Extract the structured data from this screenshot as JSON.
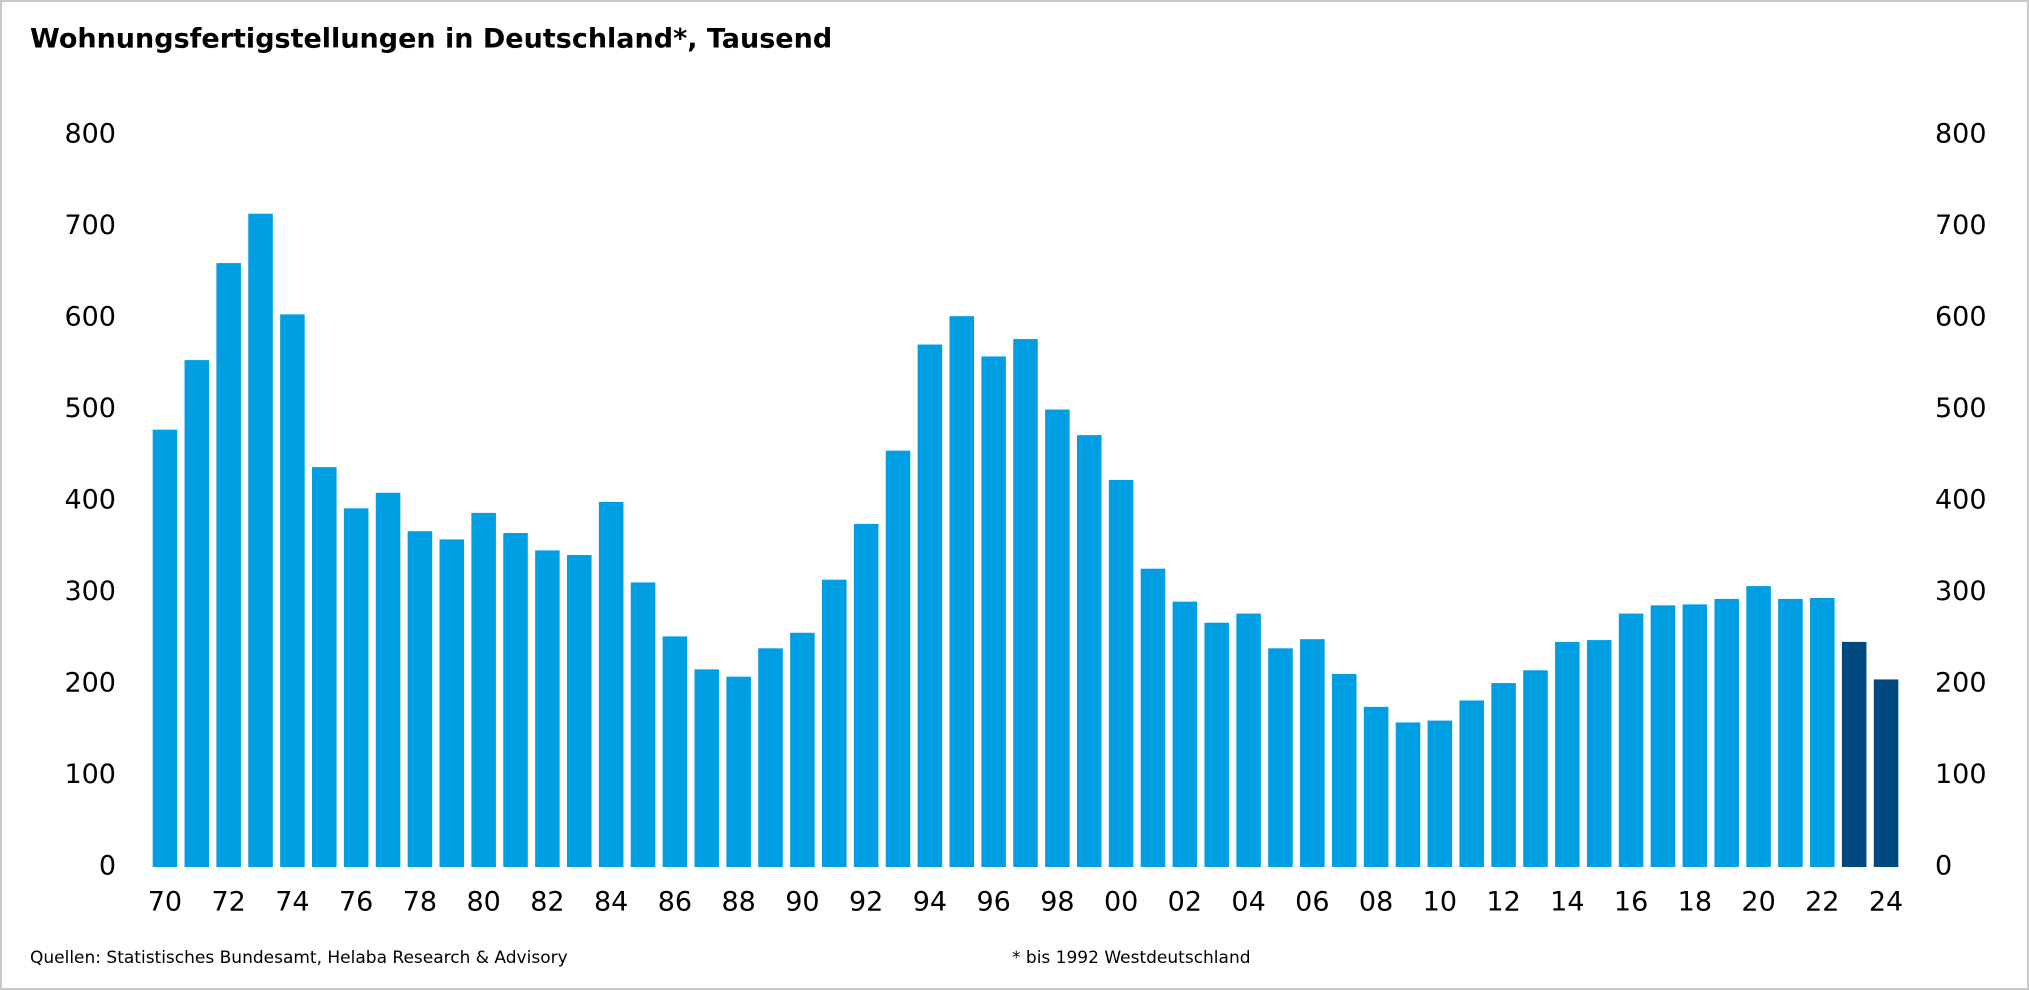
{
  "chart_data": {
    "type": "bar",
    "title": "Wohnungsfertigstellungen in Deutschland*, Tausend",
    "source": "Quellen: Statistisches Bundesamt, Helaba Research & Advisory",
    "note": "* bis 1992 Westdeutschland",
    "categories": [
      "70",
      null,
      "72",
      null,
      "74",
      null,
      "76",
      null,
      "78",
      null,
      "80",
      null,
      "82",
      null,
      "84",
      null,
      "86",
      null,
      "88",
      null,
      "90",
      null,
      "92",
      null,
      "94",
      null,
      "96",
      null,
      "98",
      null,
      "00",
      null,
      "02",
      null,
      "04",
      null,
      "06",
      null,
      "08",
      null,
      "10",
      null,
      "12",
      null,
      "14",
      null,
      "16",
      null,
      "18",
      null,
      "20",
      null,
      "22",
      null,
      "24"
    ],
    "values": [
      478,
      554,
      660,
      714,
      604,
      437,
      392,
      409,
      367,
      358,
      387,
      365,
      346,
      341,
      399,
      311,
      252,
      216,
      208,
      239,
      256,
      314,
      375,
      455,
      571,
      602,
      558,
      577,
      500,
      472,
      423,
      326,
      290,
      267,
      277,
      239,
      249,
      211,
      175,
      158,
      160,
      182,
      201,
      215,
      246,
      248,
      277,
      286,
      287,
      293,
      307,
      293,
      294,
      246,
      205
    ],
    "color": "#009fe3",
    "highlight_color": "#004a7f",
    "highlight_from": 53,
    "ylim": [
      0,
      800
    ],
    "yticks": [
      0,
      100,
      200,
      300,
      400,
      500,
      600,
      700,
      800
    ],
    "grid": false
  }
}
